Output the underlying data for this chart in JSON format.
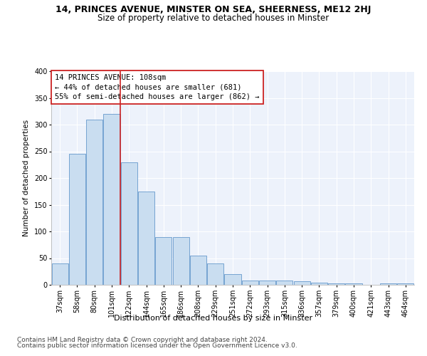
{
  "title": "14, PRINCES AVENUE, MINSTER ON SEA, SHEERNESS, ME12 2HJ",
  "subtitle": "Size of property relative to detached houses in Minster",
  "xlabel": "Distribution of detached houses by size in Minster",
  "ylabel": "Number of detached properties",
  "footer_line1": "Contains HM Land Registry data © Crown copyright and database right 2024.",
  "footer_line2": "Contains public sector information licensed under the Open Government Licence v3.0.",
  "categories": [
    "37sqm",
    "58sqm",
    "80sqm",
    "101sqm",
    "122sqm",
    "144sqm",
    "165sqm",
    "186sqm",
    "208sqm",
    "229sqm",
    "251sqm",
    "272sqm",
    "293sqm",
    "315sqm",
    "336sqm",
    "357sqm",
    "379sqm",
    "400sqm",
    "421sqm",
    "443sqm",
    "464sqm"
  ],
  "values": [
    40,
    245,
    310,
    320,
    230,
    175,
    90,
    90,
    55,
    40,
    20,
    8,
    8,
    8,
    7,
    4,
    3,
    3,
    0,
    3,
    3
  ],
  "bar_color": "#c9ddf0",
  "bar_edge_color": "#6699cc",
  "vline_x_index": 3.5,
  "vline_color": "#cc2222",
  "annotation_line1": "14 PRINCES AVENUE: 108sqm",
  "annotation_line2": "← 44% of detached houses are smaller (681)",
  "annotation_line3": "55% of semi-detached houses are larger (862) →",
  "annotation_box_color": "#cc2222",
  "ylim": [
    0,
    400
  ],
  "yticks": [
    0,
    50,
    100,
    150,
    200,
    250,
    300,
    350,
    400
  ],
  "background_color": "#edf2fb",
  "grid_color": "#ffffff",
  "title_fontsize": 9,
  "subtitle_fontsize": 8.5,
  "xlabel_fontsize": 8,
  "ylabel_fontsize": 7.5,
  "tick_fontsize": 7,
  "annotation_fontsize": 7.5,
  "footer_fontsize": 6.5
}
